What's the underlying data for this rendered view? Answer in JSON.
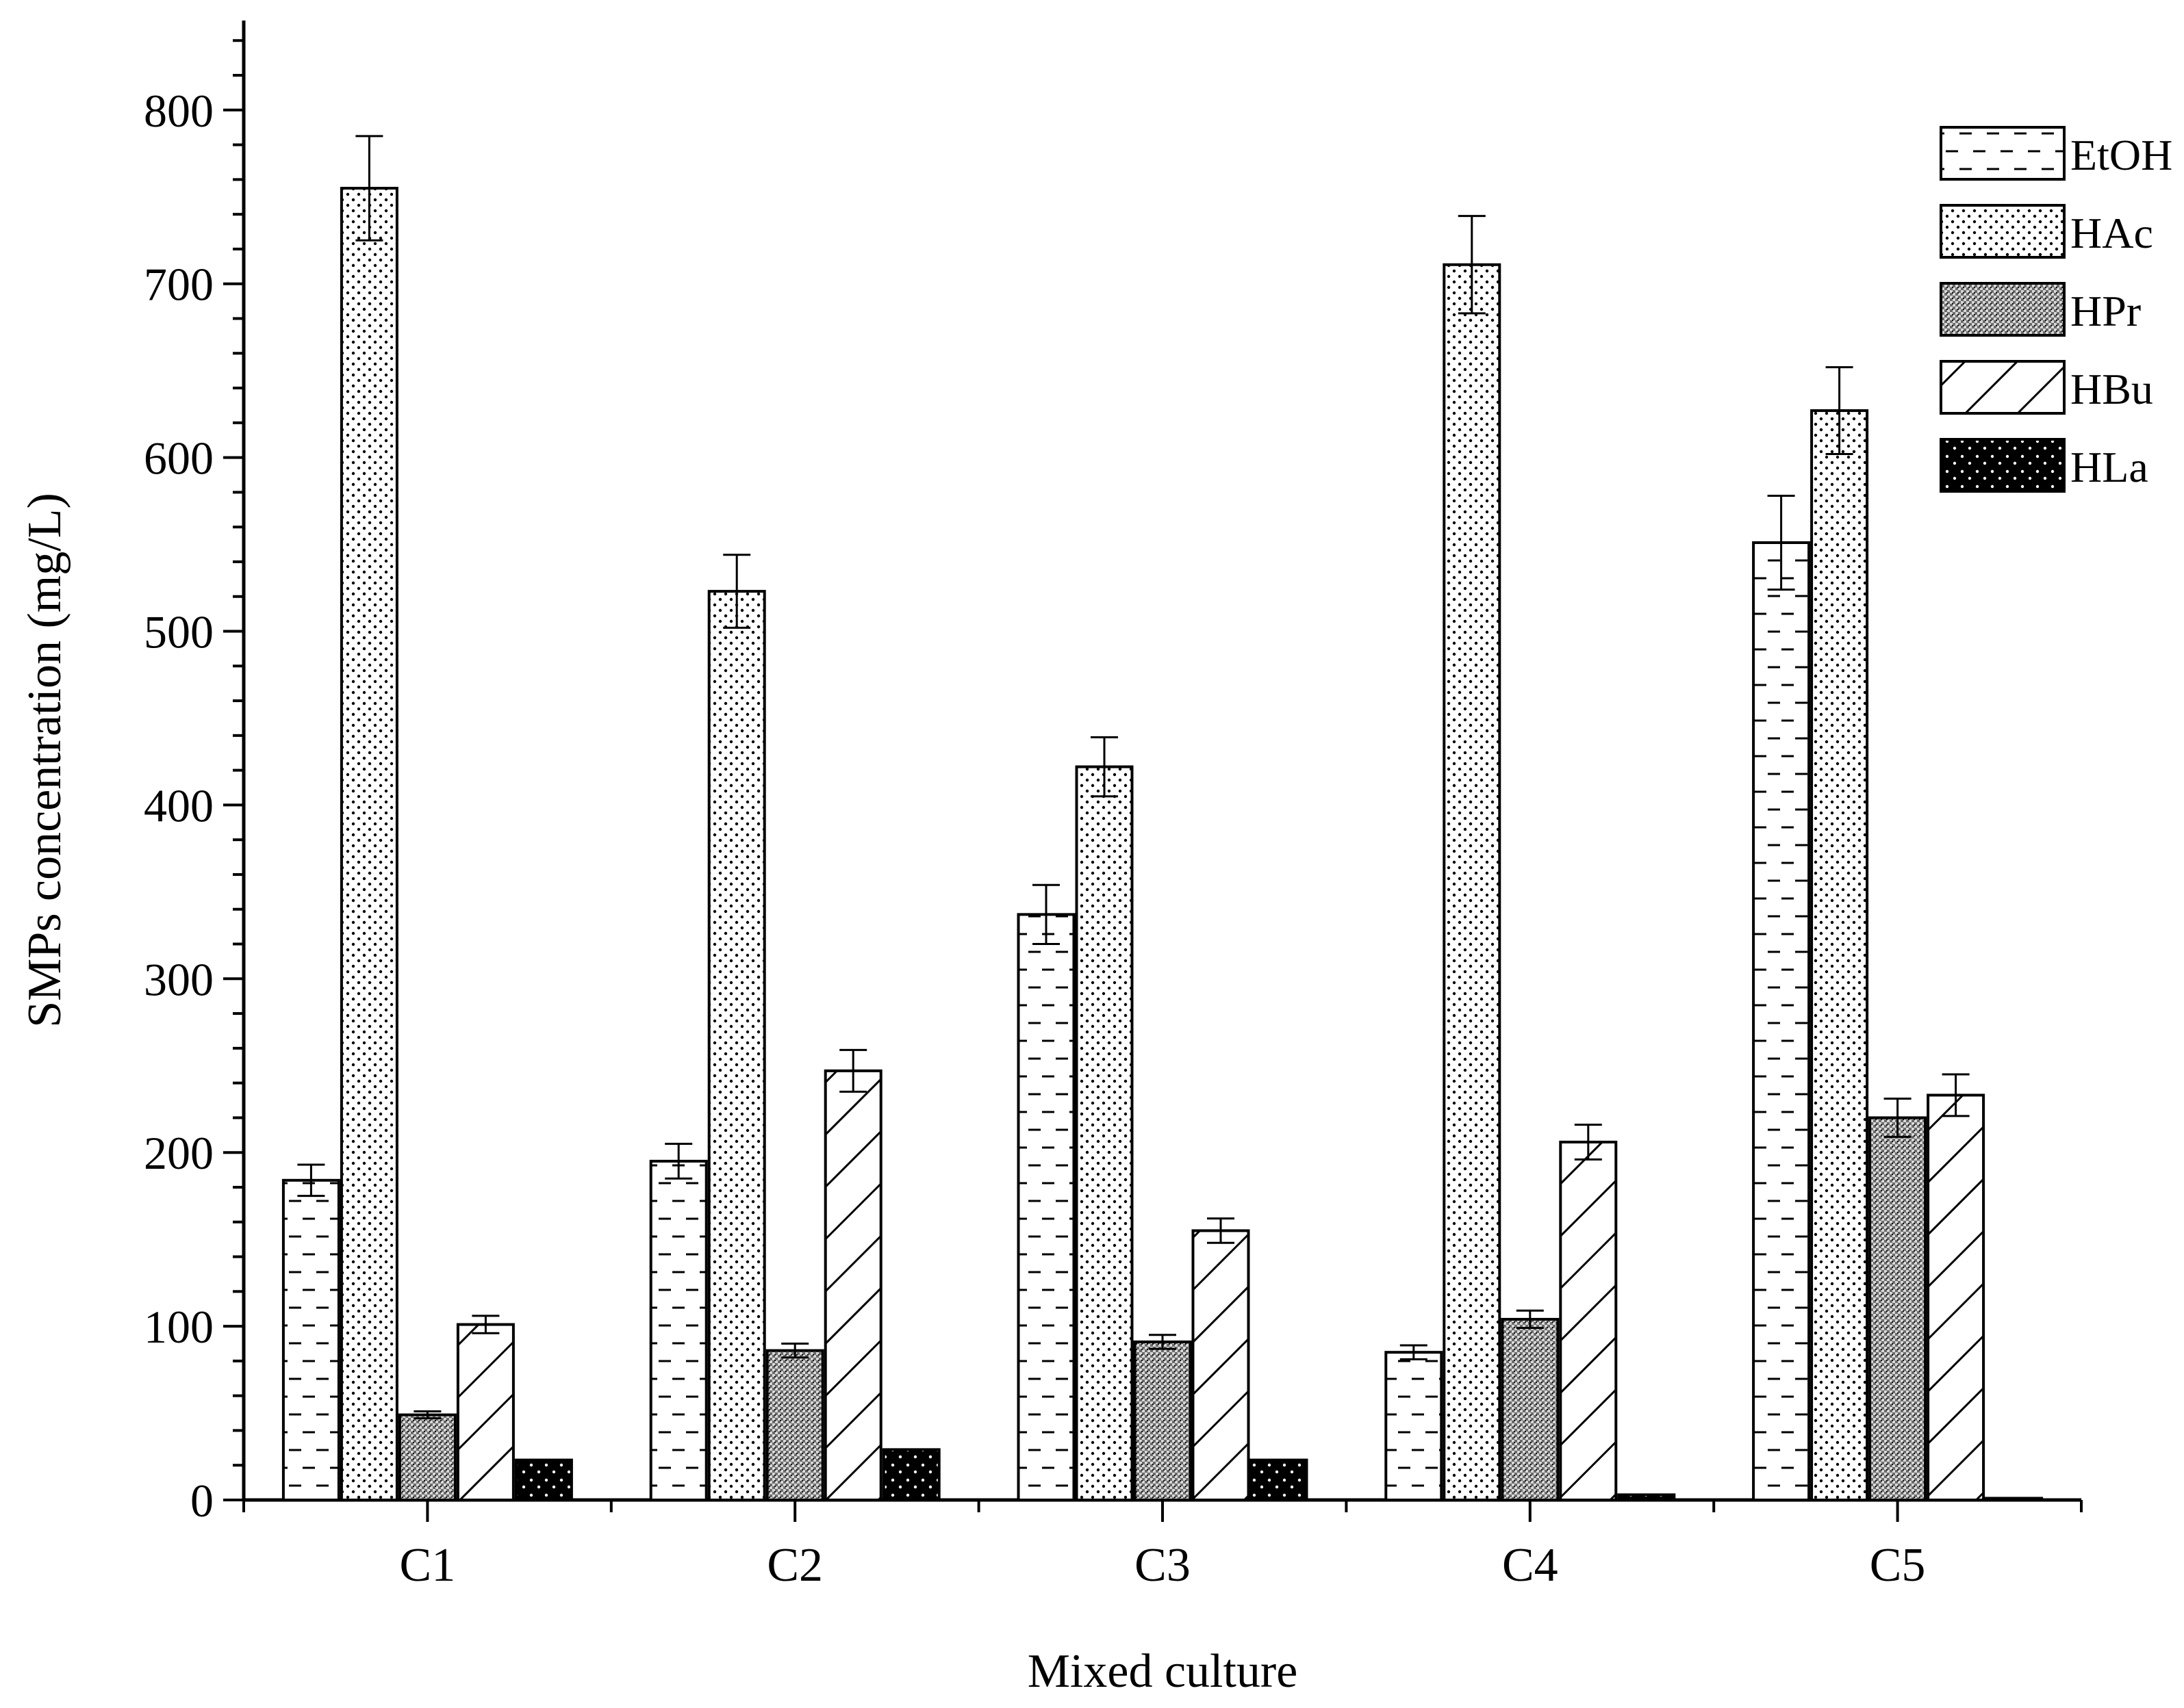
{
  "chart_data": {
    "type": "bar",
    "title": "",
    "xlabel": "Mixed culture",
    "ylabel": "SMPs concentration (mg/L)",
    "ylim": [
      0,
      850
    ],
    "yticks": [
      0,
      100,
      200,
      300,
      400,
      500,
      600,
      700,
      800
    ],
    "ytick_labels": [
      "0",
      "100",
      "200",
      "300",
      "400",
      "500",
      "600",
      "700",
      "800"
    ],
    "grid": false,
    "legend_position": "top-right",
    "categories": [
      "C1",
      "C2",
      "C3",
      "C4",
      "C5"
    ],
    "series": [
      {
        "name": "EtOH",
        "pattern": "dashes",
        "values": [
          184,
          195,
          337,
          85,
          551
        ],
        "errors": [
          9,
          10,
          17,
          4,
          27
        ]
      },
      {
        "name": "HAc",
        "pattern": "dots",
        "values": [
          755,
          523,
          422,
          711,
          627
        ],
        "errors": [
          30,
          21,
          17,
          28,
          25
        ]
      },
      {
        "name": "HPr",
        "pattern": "crosshatch",
        "values": [
          49,
          86,
          91,
          104,
          220
        ],
        "errors": [
          2,
          4,
          4,
          5,
          11
        ]
      },
      {
        "name": "HBu",
        "pattern": "diagonal",
        "values": [
          101,
          247,
          155,
          206,
          233
        ],
        "errors": [
          5,
          12,
          7,
          10,
          12
        ]
      },
      {
        "name": "HLa",
        "pattern": "solid-dots",
        "values": [
          23,
          29,
          23,
          3,
          1
        ],
        "errors": [
          0,
          0,
          0,
          0,
          0
        ]
      }
    ]
  }
}
